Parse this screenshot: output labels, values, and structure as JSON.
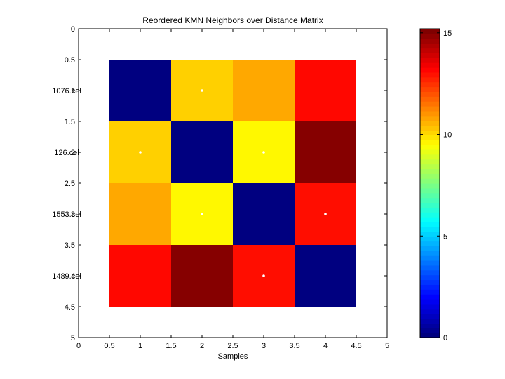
{
  "chart_data": {
    "type": "heatmap",
    "title": "Reordered KMN Neighbors over Distance Matrix",
    "xlabel": "Samples",
    "ylabel": "",
    "xlim": [
      0,
      5
    ],
    "ylim": [
      0,
      5
    ],
    "x_ticks": [
      "0",
      "0.5",
      "1",
      "1.5",
      "2",
      "2.5",
      "3",
      "3.5",
      "4",
      "4.5",
      "5"
    ],
    "y_ticks": [
      "0",
      "0.5",
      "1",
      "1.5",
      "2",
      "2.5",
      "3",
      "3.5",
      "4",
      "4.5",
      "5"
    ],
    "row_labels": [
      "1076.cel",
      "126.cel",
      "1553.cel",
      "1489.cel"
    ],
    "columns": [
      1,
      2,
      3,
      4
    ],
    "values": [
      [
        0,
        10.2,
        10.8,
        13.2
      ],
      [
        10.2,
        0,
        9.6,
        15.1
      ],
      [
        10.8,
        9.6,
        0,
        13.1
      ],
      [
        13.2,
        15.1,
        13.1,
        0
      ]
    ],
    "markers": [
      {
        "row": 1,
        "col": 2
      },
      {
        "row": 2,
        "col": 1
      },
      {
        "row": 2,
        "col": 3
      },
      {
        "row": 3,
        "col": 2
      },
      {
        "row": 3,
        "col": 4
      },
      {
        "row": 4,
        "col": 3
      }
    ],
    "colormap": "jet",
    "colorbar": {
      "min": 0,
      "max": 15.2,
      "ticks": [
        0,
        5,
        10,
        15
      ],
      "tick_labels": [
        "0",
        "5",
        "10",
        "15"
      ]
    },
    "grid": false,
    "legend": "colorbar-right"
  }
}
